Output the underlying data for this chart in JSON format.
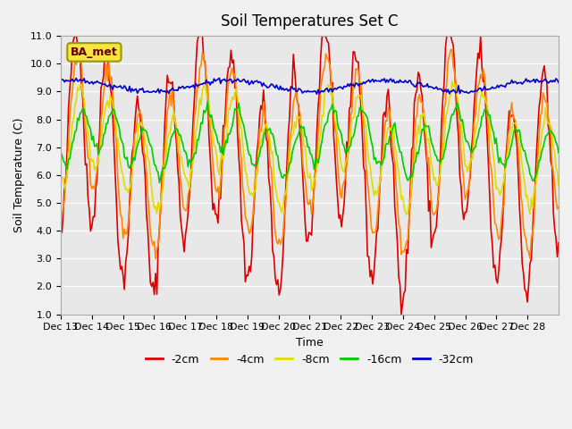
{
  "title": "Soil Temperatures Set C",
  "xlabel": "Time",
  "ylabel": "Soil Temperature (C)",
  "ylim": [
    1.0,
    11.0
  ],
  "yticks": [
    1.0,
    2.0,
    3.0,
    4.0,
    5.0,
    6.0,
    7.0,
    8.0,
    9.0,
    10.0,
    11.0
  ],
  "xtick_labels": [
    "Dec 13",
    "Dec 14",
    "Dec 15",
    "Dec 16",
    "Dec 17",
    "Dec 18",
    "Dec 19",
    "Dec 20",
    "Dec 21",
    "Dec 22",
    "Dec 23",
    "Dec 24",
    "Dec 25",
    "Dec 26",
    "Dec 27",
    "Dec 28"
  ],
  "bg_color": "#e8e8e8",
  "fig_bg_color": "#f0f0f0",
  "legend_label": "BA_met",
  "series_colors": {
    "-2cm": "#dd0000",
    "-4cm": "#ff8800",
    "-8cm": "#dddd00",
    "-16cm": "#00cc00",
    "-32cm": "#0000cc"
  },
  "series_linewidth": 1.2,
  "legend_items": [
    "-2cm",
    "-4cm",
    "-8cm",
    "-16cm",
    "-32cm"
  ],
  "n_days": 16,
  "hours_per_day": 24
}
